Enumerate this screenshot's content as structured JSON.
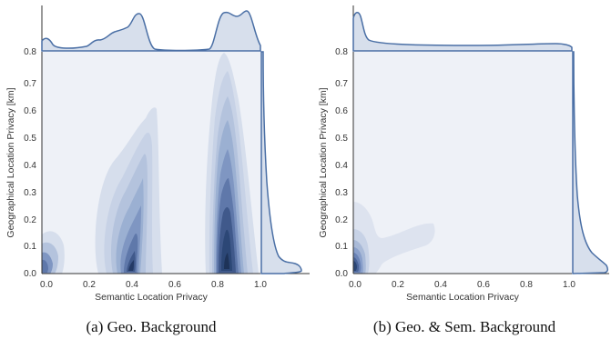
{
  "colors": {
    "contour_dark": "#2c4776",
    "contour_light": "#e6ebf3",
    "line": "#4a6fa5",
    "axis": "#333333"
  },
  "chart_data": [
    {
      "type": "kde2d_joint",
      "caption": "(a) Geo. Background",
      "xlabel": "Semantic Location Privacy",
      "ylabel": "Geographical Location Privacy [km]",
      "xlim": [
        -0.02,
        1.02
      ],
      "ylim": [
        -0.02,
        0.8
      ],
      "x_ticks": [
        "0.0",
        "0.2",
        "0.4",
        "0.6",
        "0.8",
        "1.0"
      ],
      "y_ticks": [
        "0.0",
        "0.1",
        "0.2",
        "0.3",
        "0.4",
        "0.5",
        "0.6",
        "0.7",
        "0.8"
      ],
      "density_peaks": [
        {
          "x": 0.0,
          "y": 0.03,
          "weight": 0.4
        },
        {
          "x": 0.41,
          "y": 0.05,
          "weight": 1.0
        },
        {
          "x": 0.88,
          "y": 0.05,
          "weight": 0.9
        },
        {
          "x": 0.88,
          "y": 0.2,
          "weight": 0.55
        }
      ],
      "marginal_x": {
        "x": [
          0.0,
          0.05,
          0.15,
          0.25,
          0.3,
          0.35,
          0.42,
          0.5,
          0.6,
          0.75,
          0.82,
          0.88,
          0.92,
          0.96,
          1.0
        ],
        "density": [
          0.18,
          0.05,
          0.05,
          0.25,
          0.35,
          0.4,
          0.95,
          0.1,
          0.05,
          0.1,
          0.95,
          0.85,
          0.95,
          0.6,
          0.15
        ]
      },
      "marginal_y": {
        "y": [
          0.0,
          0.02,
          0.05,
          0.1,
          0.15,
          0.2,
          0.3,
          0.4,
          0.5,
          0.6,
          0.7,
          0.8
        ],
        "density": [
          0.9,
          0.65,
          0.45,
          0.3,
          0.22,
          0.16,
          0.1,
          0.08,
          0.05,
          0.03,
          0.02,
          0.01
        ]
      }
    },
    {
      "type": "kde2d_joint",
      "caption": "(b) Geo. & Sem. Background",
      "xlabel": "Semantic Location Privacy",
      "ylabel": "Geographical Location Privacy [km]",
      "xlim": [
        -0.02,
        1.02
      ],
      "ylim": [
        -0.02,
        0.8
      ],
      "x_ticks": [
        "0.0",
        "0.2",
        "0.4",
        "0.6",
        "0.8",
        "1.0"
      ],
      "y_ticks": [
        "0.0",
        "0.1",
        "0.2",
        "0.3",
        "0.4",
        "0.5",
        "0.6",
        "0.7",
        "0.8"
      ],
      "density_peaks": [
        {
          "x": 0.0,
          "y": 0.03,
          "weight": 1.0
        },
        {
          "x": 0.25,
          "y": 0.1,
          "weight": 0.2
        }
      ],
      "marginal_x": {
        "x": [
          0.0,
          0.02,
          0.05,
          0.1,
          0.3,
          0.5,
          0.7,
          0.9,
          1.0
        ],
        "density": [
          0.9,
          0.95,
          0.5,
          0.15,
          0.12,
          0.12,
          0.14,
          0.14,
          0.12
        ]
      },
      "marginal_y": {
        "y": [
          0.0,
          0.02,
          0.05,
          0.1,
          0.15,
          0.2,
          0.3,
          0.4,
          0.5,
          0.6,
          0.7,
          0.8
        ],
        "density": [
          0.95,
          0.75,
          0.5,
          0.3,
          0.15,
          0.08,
          0.05,
          0.04,
          0.03,
          0.02,
          0.02,
          0.01
        ]
      }
    }
  ]
}
